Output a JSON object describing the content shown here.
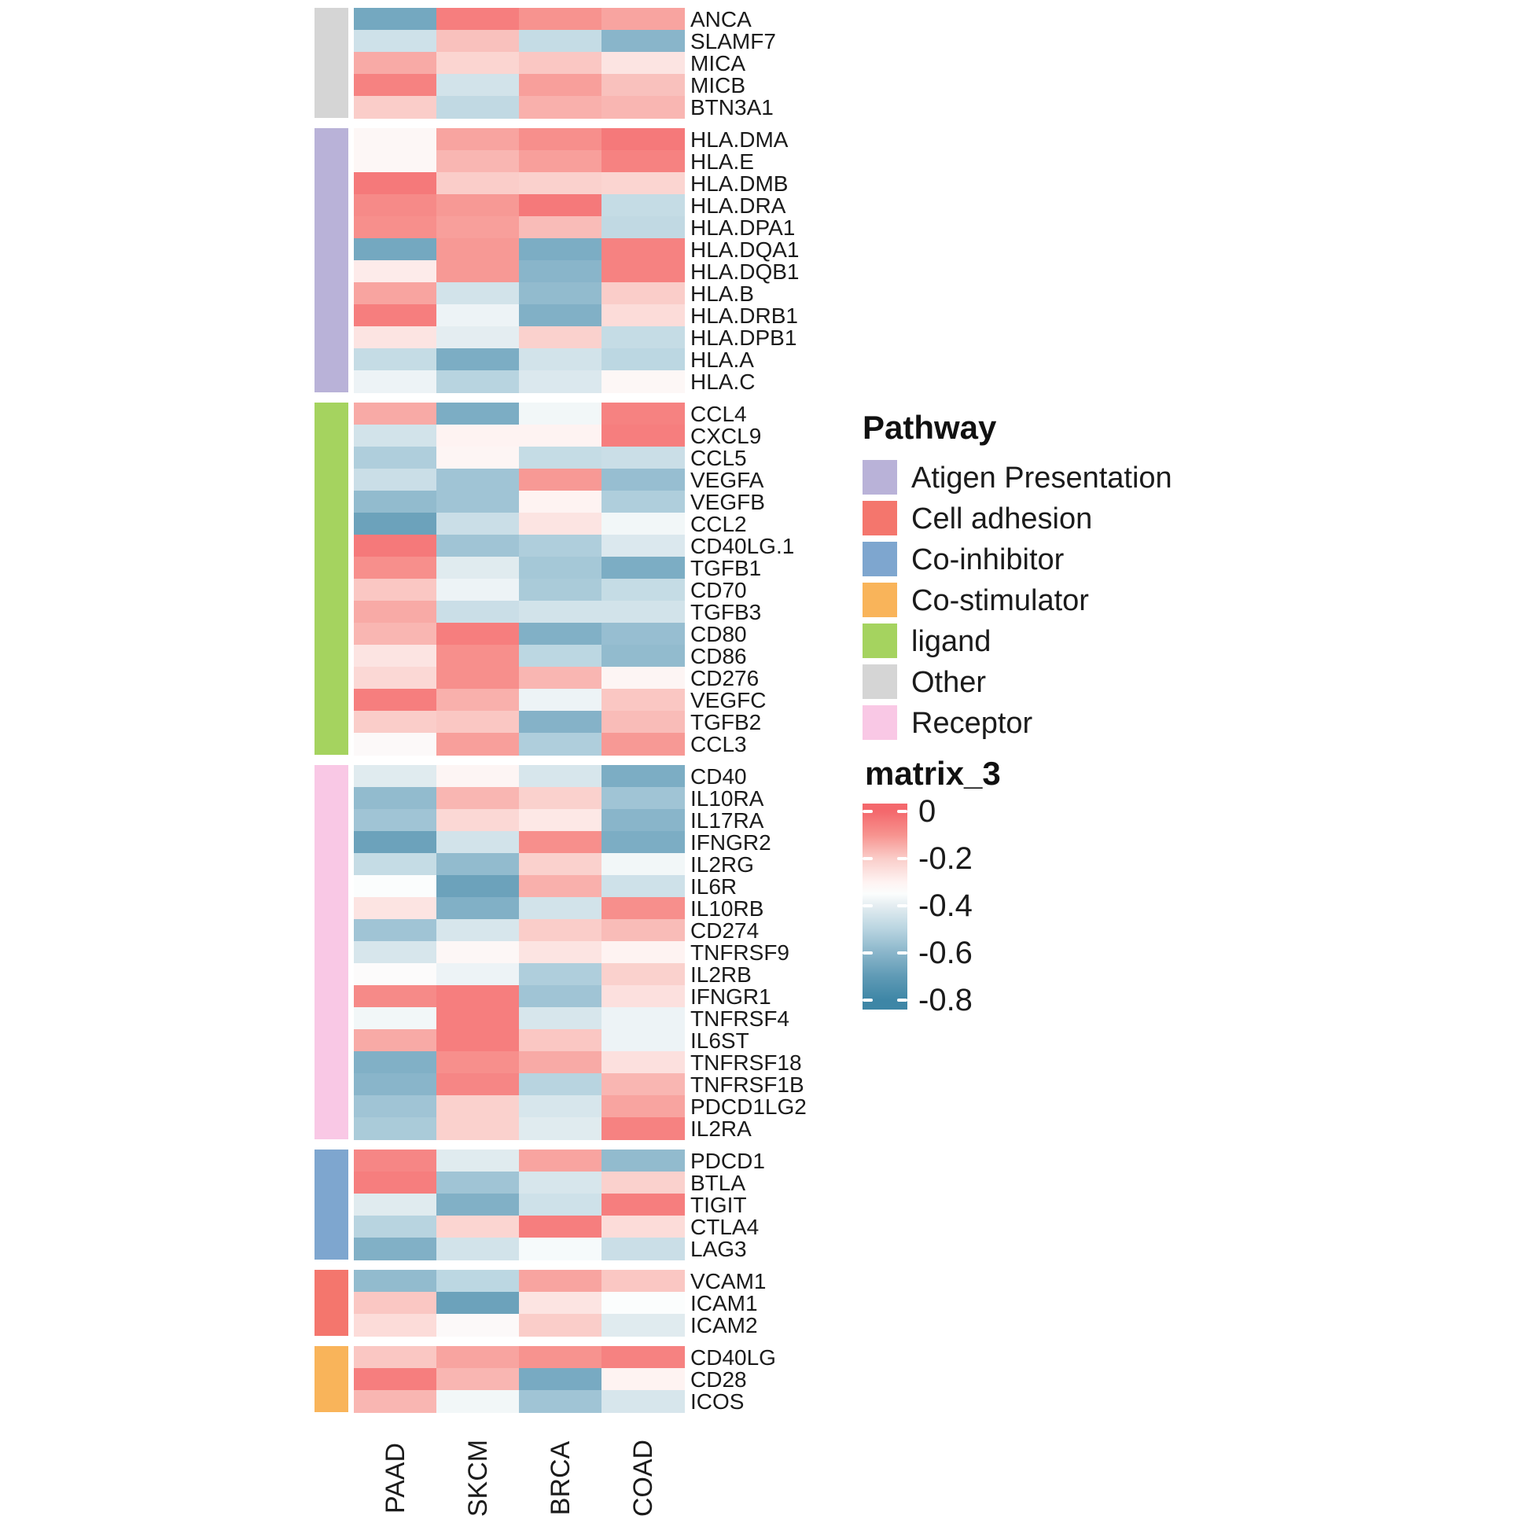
{
  "pathway_legend": {
    "title": "Pathway",
    "items": [
      {
        "label": "Atigen Presentation",
        "color": "#B9B2D8"
      },
      {
        "label": "Cell adhesion",
        "color": "#F4766D"
      },
      {
        "label": "Co-inhibitor",
        "color": "#7EA6CF"
      },
      {
        "label": "Co-stimulator",
        "color": "#F9B45A"
      },
      {
        "label": "ligand",
        "color": "#A5D35F"
      },
      {
        "label": "Other",
        "color": "#D5D5D5"
      },
      {
        "label": "Receptor",
        "color": "#F9C8E5"
      }
    ]
  },
  "colorbar_legend": {
    "title": "matrix_3",
    "ticks": [
      {
        "label": "0",
        "value": 0
      },
      {
        "label": "-0.2",
        "value": -0.2
      },
      {
        "label": "-0.4",
        "value": -0.4
      },
      {
        "label": "-0.6",
        "value": -0.6
      },
      {
        "label": "-0.8",
        "value": -0.8
      }
    ],
    "domain": [
      0,
      -0.8
    ],
    "gradient_stops": [
      {
        "v": 0.0,
        "color": "#F4686C"
      },
      {
        "v": -0.1,
        "color": "#F7938F"
      },
      {
        "v": -0.2,
        "color": "#FACDC9"
      },
      {
        "v": -0.3,
        "color": "#FEF3F2"
      },
      {
        "v": -0.35,
        "color": "#FBFDFD"
      },
      {
        "v": -0.4,
        "color": "#E4EDF1"
      },
      {
        "v": -0.5,
        "color": "#B8D4E0"
      },
      {
        "v": -0.6,
        "color": "#89B5CA"
      },
      {
        "v": -0.7,
        "color": "#5F9AB5"
      },
      {
        "v": -0.8,
        "color": "#3E86A6"
      }
    ]
  },
  "chart_data": {
    "type": "heatmap",
    "value_name": "matrix_3",
    "row_annotation_name": "Pathway",
    "columns": [
      "PAAD",
      "SKCM",
      "BRCA",
      "COAD"
    ],
    "value_range": [
      0,
      -0.8
    ],
    "legend_position": "right",
    "groups": [
      {
        "pathway": "Other",
        "color": "#D5D5D5",
        "rows": [
          {
            "gene": "ANCA",
            "values": [
              -0.65,
              -0.05,
              -0.1,
              -0.13
            ]
          },
          {
            "gene": "SLAMF7",
            "values": [
              -0.45,
              -0.18,
              -0.47,
              -0.6
            ]
          },
          {
            "gene": "MICA",
            "values": [
              -0.14,
              -0.22,
              -0.19,
              -0.26
            ]
          },
          {
            "gene": "MICB",
            "values": [
              -0.06,
              -0.44,
              -0.12,
              -0.18
            ]
          },
          {
            "gene": "BTN3A1",
            "values": [
              -0.2,
              -0.48,
              -0.15,
              -0.16
            ]
          }
        ]
      },
      {
        "pathway": "Atigen Presentation",
        "color": "#B9B2D8",
        "rows": [
          {
            "gene": "HLA.DMA",
            "values": [
              -0.32,
              -0.13,
              -0.09,
              -0.04
            ]
          },
          {
            "gene": "HLA.E",
            "values": [
              -0.32,
              -0.16,
              -0.12,
              -0.06
            ]
          },
          {
            "gene": "HLA.DMB",
            "values": [
              -0.04,
              -0.2,
              -0.21,
              -0.22
            ]
          },
          {
            "gene": "HLA.DRA",
            "values": [
              -0.08,
              -0.11,
              -0.04,
              -0.47
            ]
          },
          {
            "gene": "HLA.DPA1",
            "values": [
              -0.09,
              -0.12,
              -0.17,
              -0.48
            ]
          },
          {
            "gene": "HLA.DQA1",
            "values": [
              -0.65,
              -0.11,
              -0.63,
              -0.06
            ]
          },
          {
            "gene": "HLA.DQB1",
            "values": [
              -0.28,
              -0.11,
              -0.6,
              -0.06
            ]
          },
          {
            "gene": "HLA.B",
            "values": [
              -0.13,
              -0.44,
              -0.58,
              -0.2
            ]
          },
          {
            "gene": "HLA.DRB1",
            "values": [
              -0.05,
              -0.38,
              -0.62,
              -0.24
            ]
          },
          {
            "gene": "HLA.DPB1",
            "values": [
              -0.26,
              -0.4,
              -0.21,
              -0.47
            ]
          },
          {
            "gene": "HLA.A",
            "values": [
              -0.47,
              -0.63,
              -0.44,
              -0.49
            ]
          },
          {
            "gene": "HLA.C",
            "values": [
              -0.38,
              -0.5,
              -0.42,
              -0.32
            ]
          }
        ]
      },
      {
        "pathway": "ligand",
        "color": "#A5D35F",
        "rows": [
          {
            "gene": "CCL4",
            "values": [
              -0.14,
              -0.63,
              -0.37,
              -0.06
            ]
          },
          {
            "gene": "CXCL9",
            "values": [
              -0.44,
              -0.3,
              -0.3,
              -0.05
            ]
          },
          {
            "gene": "CCL5",
            "values": [
              -0.52,
              -0.31,
              -0.47,
              -0.46
            ]
          },
          {
            "gene": "VEGFA",
            "values": [
              -0.46,
              -0.55,
              -0.11,
              -0.57
            ]
          },
          {
            "gene": "VEGFB",
            "values": [
              -0.58,
              -0.55,
              -0.3,
              -0.52
            ]
          },
          {
            "gene": "CCL2",
            "values": [
              -0.67,
              -0.46,
              -0.26,
              -0.37
            ]
          },
          {
            "gene": "CD40LG.1",
            "values": [
              -0.04,
              -0.55,
              -0.52,
              -0.42
            ]
          },
          {
            "gene": "TGFB1",
            "values": [
              -0.09,
              -0.41,
              -0.54,
              -0.63
            ]
          },
          {
            "gene": "CD70",
            "values": [
              -0.19,
              -0.38,
              -0.53,
              -0.47
            ]
          },
          {
            "gene": "TGFB3",
            "values": [
              -0.14,
              -0.46,
              -0.44,
              -0.44
            ]
          },
          {
            "gene": "CD80",
            "values": [
              -0.16,
              -0.05,
              -0.62,
              -0.57
            ]
          },
          {
            "gene": "CD86",
            "values": [
              -0.26,
              -0.09,
              -0.49,
              -0.58
            ]
          },
          {
            "gene": "CD276",
            "values": [
              -0.23,
              -0.09,
              -0.16,
              -0.31
            ]
          },
          {
            "gene": "VEGFC",
            "values": [
              -0.05,
              -0.15,
              -0.38,
              -0.19
            ]
          },
          {
            "gene": "TGFB2",
            "values": [
              -0.2,
              -0.19,
              -0.61,
              -0.17
            ]
          },
          {
            "gene": "CCL3",
            "values": [
              -0.33,
              -0.12,
              -0.52,
              -0.11
            ]
          }
        ]
      },
      {
        "pathway": "Receptor",
        "color": "#F9C8E5",
        "rows": [
          {
            "gene": "CD40",
            "values": [
              -0.41,
              -0.31,
              -0.43,
              -0.63
            ]
          },
          {
            "gene": "IL10RA",
            "values": [
              -0.58,
              -0.16,
              -0.21,
              -0.55
            ]
          },
          {
            "gene": "IL17RA",
            "values": [
              -0.55,
              -0.23,
              -0.27,
              -0.6
            ]
          },
          {
            "gene": "IFNGR2",
            "values": [
              -0.67,
              -0.44,
              -0.09,
              -0.63
            ]
          },
          {
            "gene": "IL2RG",
            "values": [
              -0.47,
              -0.58,
              -0.21,
              -0.37
            ]
          },
          {
            "gene": "IL6R",
            "values": [
              -0.35,
              -0.67,
              -0.15,
              -0.45
            ]
          },
          {
            "gene": "IL10RB",
            "values": [
              -0.26,
              -0.62,
              -0.44,
              -0.09
            ]
          },
          {
            "gene": "CD274",
            "values": [
              -0.55,
              -0.43,
              -0.2,
              -0.17
            ]
          },
          {
            "gene": "TNFRSF9",
            "values": [
              -0.43,
              -0.32,
              -0.26,
              -0.3
            ]
          },
          {
            "gene": "IL2RB",
            "values": [
              -0.34,
              -0.38,
              -0.52,
              -0.21
            ]
          },
          {
            "gene": "IFNGR1",
            "values": [
              -0.08,
              -0.05,
              -0.55,
              -0.25
            ]
          },
          {
            "gene": "TNFRSF4",
            "values": [
              -0.37,
              -0.05,
              -0.43,
              -0.38
            ]
          },
          {
            "gene": "IL6ST",
            "values": [
              -0.14,
              -0.05,
              -0.19,
              -0.38
            ]
          },
          {
            "gene": "TNFRSF18",
            "values": [
              -0.62,
              -0.09,
              -0.14,
              -0.25
            ]
          },
          {
            "gene": "TNFRSF1B",
            "values": [
              -0.6,
              -0.07,
              -0.5,
              -0.16
            ]
          },
          {
            "gene": "PDCD1LG2",
            "values": [
              -0.55,
              -0.21,
              -0.43,
              -0.13
            ]
          },
          {
            "gene": "IL2RA",
            "values": [
              -0.53,
              -0.21,
              -0.41,
              -0.06
            ]
          }
        ]
      },
      {
        "pathway": "Co-inhibitor",
        "color": "#7EA6CF",
        "rows": [
          {
            "gene": "PDCD1",
            "values": [
              -0.07,
              -0.41,
              -0.13,
              -0.58
            ]
          },
          {
            "gene": "BTLA",
            "values": [
              -0.05,
              -0.55,
              -0.43,
              -0.21
            ]
          },
          {
            "gene": "TIGIT",
            "values": [
              -0.41,
              -0.62,
              -0.45,
              -0.05
            ]
          },
          {
            "gene": "CTLA4",
            "values": [
              -0.5,
              -0.22,
              -0.05,
              -0.24
            ]
          },
          {
            "gene": "LAG3",
            "values": [
              -0.62,
              -0.44,
              -0.36,
              -0.46
            ]
          }
        ]
      },
      {
        "pathway": "Cell adhesion",
        "color": "#F4766D",
        "rows": [
          {
            "gene": "VCAM1",
            "values": [
              -0.58,
              -0.49,
              -0.13,
              -0.19
            ]
          },
          {
            "gene": "ICAM1",
            "values": [
              -0.19,
              -0.67,
              -0.26,
              -0.35
            ]
          },
          {
            "gene": "ICAM2",
            "values": [
              -0.24,
              -0.33,
              -0.2,
              -0.41
            ]
          }
        ]
      },
      {
        "pathway": "Co-stimulator",
        "color": "#F9B45A",
        "rows": [
          {
            "gene": "CD40LG",
            "values": [
              -0.19,
              -0.13,
              -0.1,
              -0.06
            ]
          },
          {
            "gene": "CD28",
            "values": [
              -0.05,
              -0.16,
              -0.64,
              -0.3
            ]
          },
          {
            "gene": "ICOS",
            "values": [
              -0.16,
              -0.37,
              -0.55,
              -0.43
            ]
          }
        ]
      }
    ]
  }
}
